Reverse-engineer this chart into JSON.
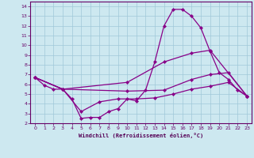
{
  "xlabel": "Windchill (Refroidissement éolien,°C)",
  "xlim": [
    -0.5,
    23.5
  ],
  "ylim": [
    2,
    14.5
  ],
  "yticks": [
    2,
    3,
    4,
    5,
    6,
    7,
    8,
    9,
    10,
    11,
    12,
    13,
    14
  ],
  "xticks": [
    0,
    1,
    2,
    3,
    4,
    5,
    6,
    7,
    8,
    9,
    10,
    11,
    12,
    13,
    14,
    15,
    16,
    17,
    18,
    19,
    20,
    21,
    22,
    23
  ],
  "background_color": "#cde8f0",
  "line_color": "#880088",
  "grid_color": "#a0c8d8",
  "line1_x": [
    0,
    1,
    2,
    3,
    4,
    5,
    6,
    7,
    8,
    9,
    10,
    11,
    12,
    13,
    14,
    15,
    16,
    17,
    18,
    19,
    20,
    21,
    22,
    23
  ],
  "line1_y": [
    6.7,
    5.9,
    5.5,
    5.5,
    4.5,
    2.5,
    2.6,
    2.6,
    3.2,
    3.5,
    4.5,
    4.3,
    5.4,
    8.3,
    12.0,
    13.7,
    13.7,
    13.0,
    11.8,
    9.4,
    7.2,
    6.5,
    5.4,
    4.8
  ],
  "line2_x": [
    0,
    3,
    10,
    14,
    17,
    19,
    23
  ],
  "line2_y": [
    6.7,
    5.5,
    6.2,
    8.3,
    9.2,
    9.5,
    4.8
  ],
  "line3_x": [
    0,
    3,
    10,
    14,
    17,
    19,
    21,
    23
  ],
  "line3_y": [
    6.7,
    5.5,
    5.3,
    5.4,
    6.5,
    7.0,
    7.2,
    4.8
  ],
  "line4_x": [
    0,
    3,
    5,
    7,
    9,
    11,
    13,
    15,
    17,
    19,
    21,
    23
  ],
  "line4_y": [
    6.7,
    5.5,
    3.2,
    4.2,
    4.5,
    4.5,
    4.6,
    5.0,
    5.5,
    5.8,
    6.2,
    4.8
  ]
}
